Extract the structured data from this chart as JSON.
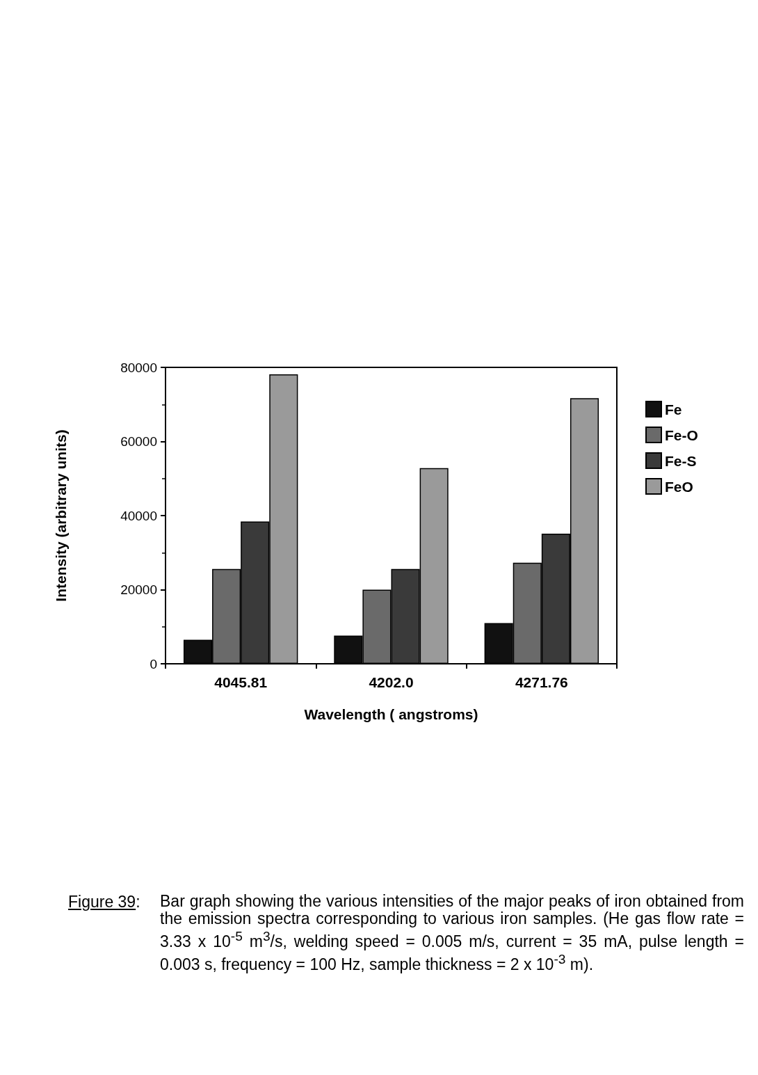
{
  "chart_data": {
    "type": "bar",
    "categories": [
      "4045.81",
      "4202.0",
      "4271.76"
    ],
    "series": [
      {
        "name": "Fe",
        "color": "#111111",
        "values": [
          6500,
          7600,
          11000
        ]
      },
      {
        "name": "Fe-O",
        "color": "#6a6a6a",
        "values": [
          25600,
          20000,
          27300
        ]
      },
      {
        "name": "Fe-S",
        "color": "#3a3a3a",
        "values": [
          38400,
          25600,
          35100
        ]
      },
      {
        "name": "FeO",
        "color": "#9a9a9a",
        "values": [
          78100,
          52800,
          71700
        ]
      }
    ],
    "xlabel": "Wavelength ( angstroms)",
    "ylabel": "Intensity (arbitrary units)",
    "ylim": [
      0,
      80000
    ],
    "yticks": [
      0,
      20000,
      40000,
      60000,
      80000
    ],
    "grid": false,
    "legend": "right",
    "annotations": [
      "Figure 39:",
      "Bar graph showing the various intensities of the major peaks of iron obtained from the emission spectra corresponding to various iron samples.  (He gas flow rate = 3.33 x 10$^{-5}$ m$^{3}$/s, welding speed = 0.005 m/s, current = 35 mA, pulse length = 0.003 s, frequency = 100 Hz, sample thickness = 2 x 10$^{-3}$ m)."
    ]
  }
}
